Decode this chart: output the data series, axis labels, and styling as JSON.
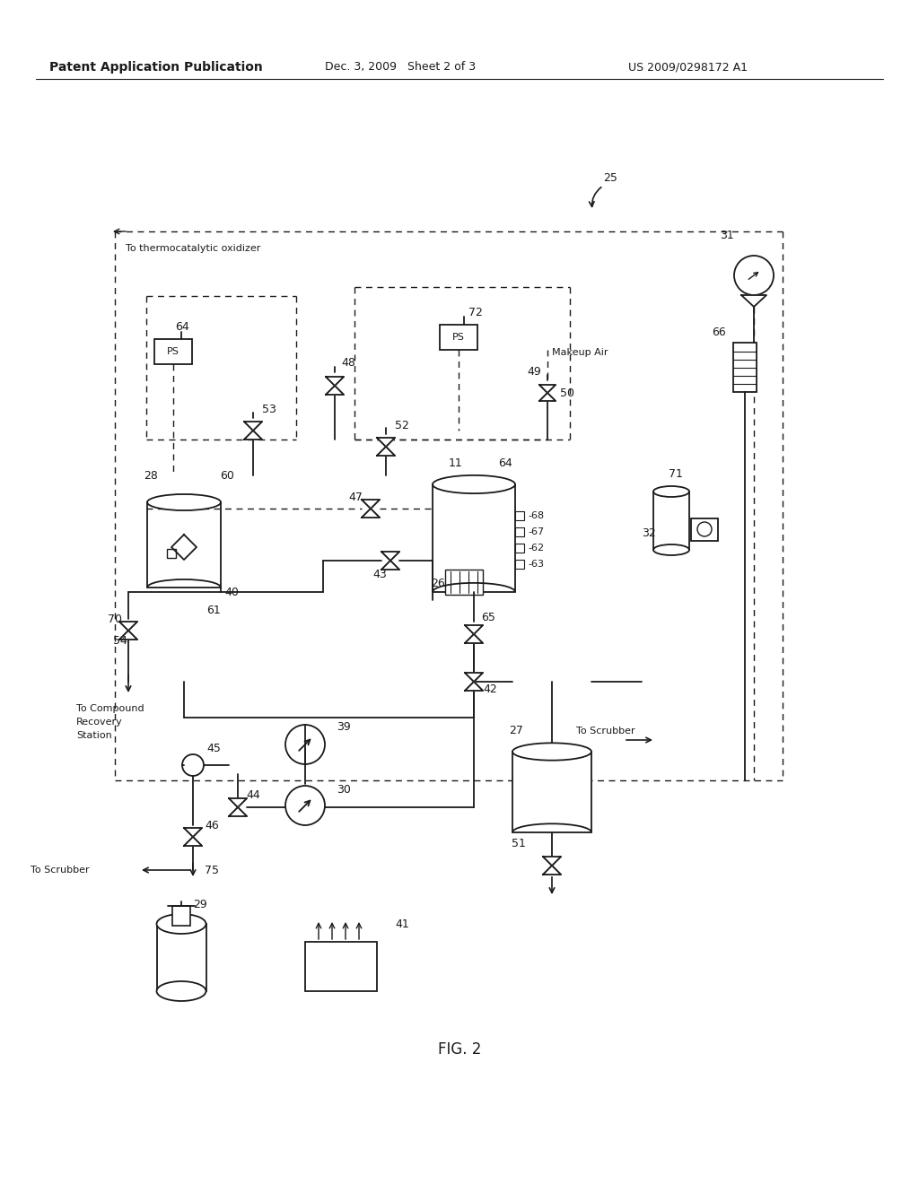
{
  "header_left": "Patent Application Publication",
  "header_mid": "Dec. 3, 2009   Sheet 2 of 3",
  "header_right": "US 2009/0298172 A1",
  "fig_label": "FIG. 2",
  "bg_color": "#ffffff",
  "lc": "#1a1a1a",
  "tc": "#1a1a1a"
}
